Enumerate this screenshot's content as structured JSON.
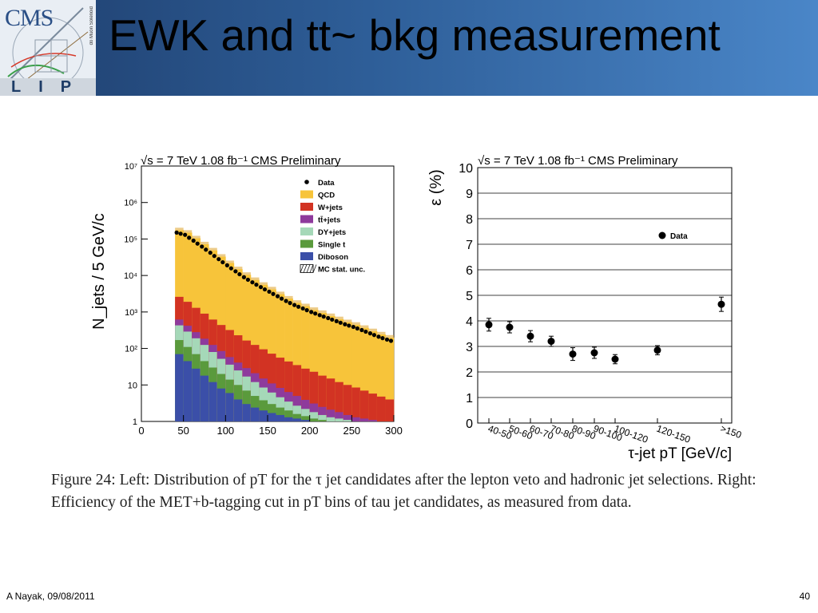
{
  "header": {
    "title": "EWK and tt~ bkg measurement",
    "logo_text_top": "CMS",
    "logo_text_bottom": "LIP",
    "logo_side_text": "do Muon Solenoid"
  },
  "caption": {
    "text": "Figure 24: Left: Distribution of pT for the τ jet candidates after the lepton veto and hadronic jet selections. Right: Efficiency of the MET+b-tagging cut in pT bins of tau jet candidates, as measured from data."
  },
  "footer": {
    "author_date": "A Nayak,  09/08/2011",
    "page": "40"
  },
  "chart_data": [
    {
      "type": "bar",
      "title": "√s = 7 TeV   1.08 fb⁻¹   CMS Preliminary",
      "xlabel": "",
      "ylabel": "N_jets / 5 GeV/c",
      "ylim": [
        1,
        10000000
      ],
      "yscale": "log",
      "xlim": [
        0,
        300
      ],
      "x_ticks": [
        "0",
        "50",
        "100",
        "150",
        "200",
        "250",
        "300"
      ],
      "y_ticks": [
        "1",
        "10",
        "10²",
        "10³",
        "10⁴",
        "10⁵",
        "10⁶",
        "10⁷"
      ],
      "legend_position": "top-right",
      "legend": [
        "Data",
        "QCD",
        "W+jets",
        "tt̄+jets",
        "DY+jets",
        "Single t",
        "Diboson",
        "MC stat. unc."
      ],
      "colors": {
        "QCD": "#f7c43a",
        "W+jets": "#d23323",
        "tt+jets": "#8e3a9c",
        "DY+jets": "#a5d8b8",
        "Single t": "#5a9a3c",
        "Diboson": "#3b4fa8"
      },
      "x": [
        40,
        50,
        60,
        70,
        80,
        90,
        100,
        110,
        120,
        130,
        140,
        150,
        160,
        170,
        180,
        190,
        200,
        210,
        220,
        230,
        240,
        250,
        260,
        270,
        280,
        290,
        300
      ],
      "series": [
        {
          "name": "Data",
          "values": [
            150000,
            130000,
            90000,
            62000,
            42000,
            28000,
            19000,
            13000,
            9000,
            6500,
            4800,
            3600,
            2700,
            2000,
            1550,
            1250,
            1000,
            820,
            680,
            560,
            460,
            390,
            320,
            260,
            210,
            175,
            150
          ]
        },
        {
          "name": "Diboson",
          "values": [
            70,
            45,
            28,
            18,
            12,
            8,
            6,
            4,
            3,
            2.4,
            2,
            1.7,
            1.5,
            1.3,
            1.2,
            1.1,
            1,
            1,
            1,
            1,
            1,
            1,
            1,
            1,
            1,
            1,
            1
          ]
        },
        {
          "name": "Single t",
          "values": [
            170,
            110,
            70,
            45,
            30,
            20,
            14,
            10,
            7,
            5,
            3.8,
            3,
            2.4,
            2,
            1.6,
            1.4,
            1.2,
            1.1,
            1,
            1,
            1,
            1,
            1,
            1,
            1,
            1,
            1
          ]
        },
        {
          "name": "DY+jets",
          "values": [
            430,
            290,
            190,
            125,
            80,
            52,
            36,
            25,
            17,
            12,
            8.5,
            6.2,
            4.6,
            3.5,
            2.7,
            2.2,
            1.8,
            1.5,
            1.3,
            1.2,
            1.1,
            1,
            1,
            1,
            1,
            1,
            1
          ]
        },
        {
          "name": "tt+jets",
          "values": [
            620,
            420,
            280,
            185,
            125,
            85,
            58,
            41,
            29,
            21,
            15,
            11,
            8.3,
            6.4,
            5,
            3.9,
            3.1,
            2.5,
            2.1,
            1.8,
            1.5,
            1.3,
            1.2,
            1.1,
            1,
            1,
            1
          ]
        },
        {
          "name": "W+jets",
          "values": [
            2600,
            1900,
            1300,
            900,
            620,
            440,
            320,
            230,
            165,
            125,
            95,
            72,
            56,
            44,
            35,
            28,
            23,
            18,
            15,
            12,
            10,
            8.5,
            7,
            5.8,
            4.8,
            4,
            3.3
          ]
        },
        {
          "name": "QCD",
          "values": [
            175000,
            150000,
            105000,
            72000,
            49000,
            33000,
            22000,
            15000,
            10500,
            7600,
            5600,
            4200,
            3100,
            2350,
            1800,
            1450,
            1150,
            950,
            780,
            640,
            530,
            450,
            370,
            300,
            245,
            200,
            170
          ]
        }
      ]
    },
    {
      "type": "scatter",
      "title": "√s = 7 TeV   1.08 fb⁻¹   CMS Preliminary",
      "xlabel": "τ-jet pT [GeV/c]",
      "ylabel": "ε (%)",
      "ylim": [
        0,
        10
      ],
      "y_ticks": [
        "0",
        "1",
        "2",
        "3",
        "4",
        "5",
        "6",
        "7",
        "8",
        "9",
        "10"
      ],
      "categories": [
        "40-50",
        "50-60",
        "60-70",
        "70-80",
        "80-90",
        "90-100",
        "100-120",
        "120-150",
        ">150"
      ],
      "legend": [
        "Data"
      ],
      "legend_position": "top-right",
      "grid": true,
      "series": [
        {
          "name": "Data",
          "values": [
            3.85,
            3.75,
            3.4,
            3.2,
            2.7,
            2.75,
            2.5,
            2.85,
            4.65
          ],
          "errors": [
            0.25,
            0.22,
            0.22,
            0.2,
            0.25,
            0.22,
            0.18,
            0.18,
            0.28
          ]
        }
      ]
    }
  ]
}
